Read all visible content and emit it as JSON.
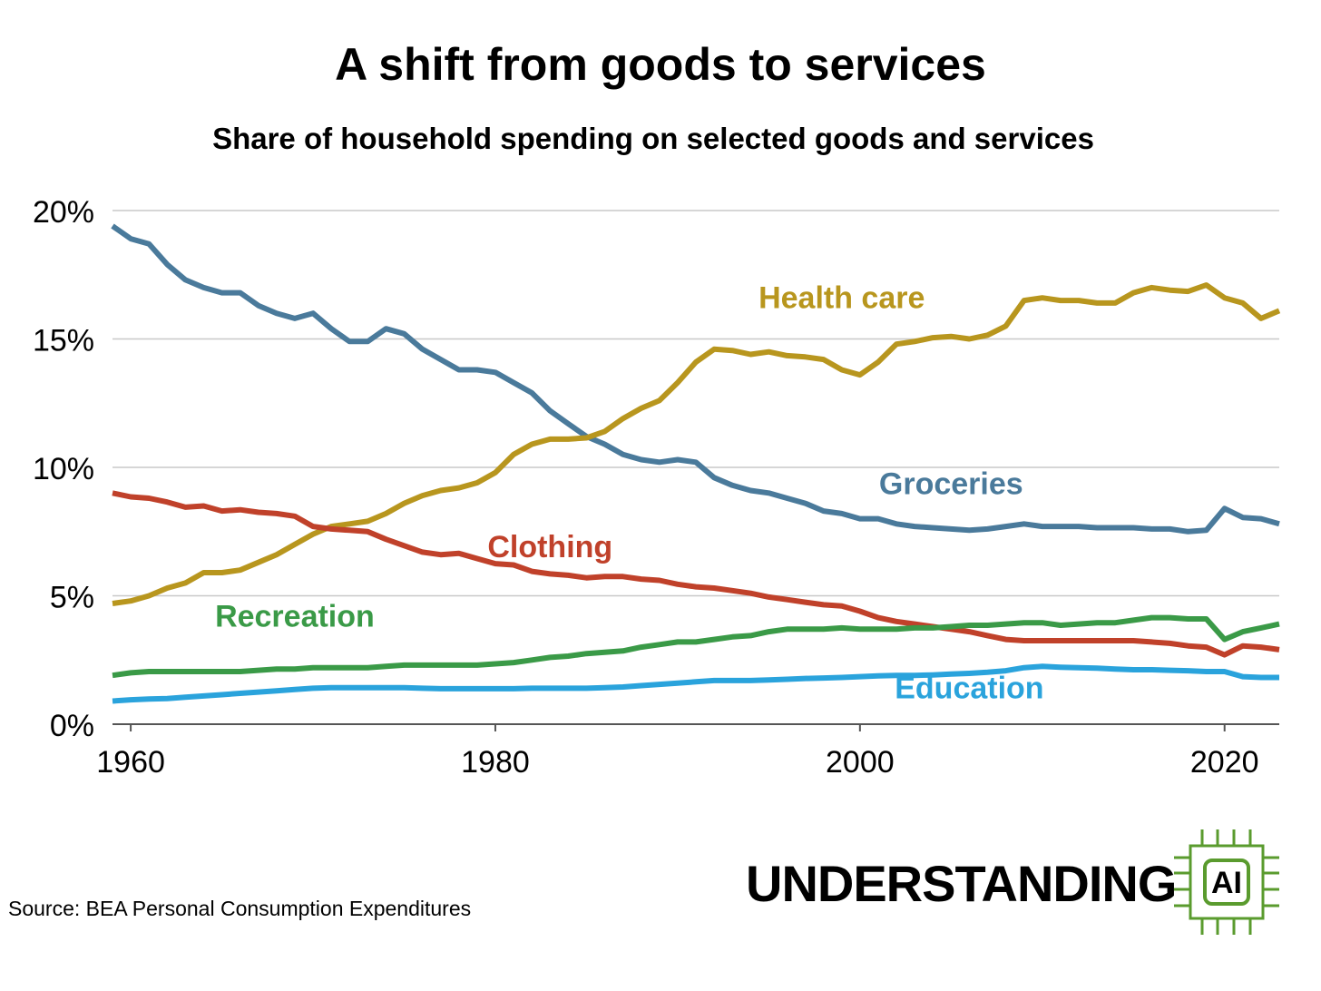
{
  "title": "A shift from goods to services",
  "subtitle": "Share of household spending on selected goods and services",
  "source": "Source: BEA Personal Consumption Expenditures",
  "logo": {
    "word": "UNDERSTANDING",
    "chip_text": "AI",
    "color": "#5a9b2e"
  },
  "chart_data": {
    "type": "line",
    "xlim": [
      1959,
      2023
    ],
    "ylim": [
      0,
      20
    ],
    "x_ticks": [
      1960,
      1980,
      2000,
      2020
    ],
    "x_tick_labels": [
      "1960",
      "1980",
      "2000",
      "2020"
    ],
    "y_ticks": [
      0,
      5,
      10,
      15,
      20
    ],
    "y_tick_labels": [
      "0%",
      "5%",
      "10%",
      "15%",
      "20%"
    ],
    "grid": "horizontal",
    "series": [
      {
        "name": "Groceries",
        "color": "#4a7a9b",
        "x": [
          1959,
          1960,
          1961,
          1962,
          1963,
          1964,
          1965,
          1966,
          1967,
          1968,
          1969,
          1970,
          1971,
          1972,
          1973,
          1974,
          1975,
          1976,
          1977,
          1978,
          1979,
          1980,
          1981,
          1982,
          1983,
          1984,
          1985,
          1986,
          1987,
          1988,
          1989,
          1990,
          1991,
          1992,
          1993,
          1994,
          1995,
          1996,
          1997,
          1998,
          1999,
          2000,
          2001,
          2002,
          2003,
          2004,
          2005,
          2006,
          2007,
          2008,
          2009,
          2010,
          2011,
          2012,
          2013,
          2014,
          2015,
          2016,
          2017,
          2018,
          2019,
          2020,
          2021,
          2022,
          2023
        ],
        "values": [
          19.4,
          18.9,
          18.7,
          17.9,
          17.3,
          17.0,
          16.8,
          16.8,
          16.3,
          16.0,
          15.8,
          16.0,
          15.4,
          14.9,
          14.9,
          15.4,
          15.2,
          14.6,
          14.2,
          13.8,
          13.8,
          13.7,
          13.3,
          12.9,
          12.2,
          11.7,
          11.2,
          10.9,
          10.5,
          10.3,
          10.2,
          10.3,
          10.2,
          9.6,
          9.3,
          9.1,
          9.0,
          8.8,
          8.6,
          8.3,
          8.2,
          8.0,
          8.0,
          7.8,
          7.7,
          7.65,
          7.6,
          7.55,
          7.6,
          7.7,
          7.8,
          7.7,
          7.7,
          7.7,
          7.65,
          7.65,
          7.65,
          7.6,
          7.6,
          7.5,
          7.55,
          8.4,
          8.05,
          8.0,
          7.8
        ],
        "label": {
          "x": 2005,
          "y": 8.95
        }
      },
      {
        "name": "Health care",
        "color": "#b8961e",
        "x": [
          1959,
          1960,
          1961,
          1962,
          1963,
          1964,
          1965,
          1966,
          1967,
          1968,
          1969,
          1970,
          1971,
          1972,
          1973,
          1974,
          1975,
          1976,
          1977,
          1978,
          1979,
          1980,
          1981,
          1982,
          1983,
          1984,
          1985,
          1986,
          1987,
          1988,
          1989,
          1990,
          1991,
          1992,
          1993,
          1994,
          1995,
          1996,
          1997,
          1998,
          1999,
          2000,
          2001,
          2002,
          2003,
          2004,
          2005,
          2006,
          2007,
          2008,
          2009,
          2010,
          2011,
          2012,
          2013,
          2014,
          2015,
          2016,
          2017,
          2018,
          2019,
          2020,
          2021,
          2022,
          2023
        ],
        "values": [
          4.7,
          4.8,
          5.0,
          5.3,
          5.5,
          5.9,
          5.9,
          6.0,
          6.3,
          6.6,
          7.0,
          7.4,
          7.7,
          7.8,
          7.9,
          8.2,
          8.6,
          8.9,
          9.1,
          9.2,
          9.4,
          9.8,
          10.5,
          10.9,
          11.1,
          11.1,
          11.15,
          11.4,
          11.9,
          12.3,
          12.6,
          13.3,
          14.1,
          14.6,
          14.55,
          14.4,
          14.5,
          14.35,
          14.3,
          14.2,
          13.8,
          13.6,
          14.1,
          14.8,
          14.9,
          15.05,
          15.1,
          15.0,
          15.15,
          15.5,
          16.5,
          16.6,
          16.5,
          16.5,
          16.4,
          16.4,
          16.8,
          17.0,
          16.9,
          16.85,
          17.1,
          16.6,
          16.4,
          15.8,
          16.1
        ],
        "label": {
          "x": 1999,
          "y": 16.2
        }
      },
      {
        "name": "Clothing",
        "color": "#c0412a",
        "x": [
          1959,
          1960,
          1961,
          1962,
          1963,
          1964,
          1965,
          1966,
          1967,
          1968,
          1969,
          1970,
          1971,
          1972,
          1973,
          1974,
          1975,
          1976,
          1977,
          1978,
          1979,
          1980,
          1981,
          1982,
          1983,
          1984,
          1985,
          1986,
          1987,
          1988,
          1989,
          1990,
          1991,
          1992,
          1993,
          1994,
          1995,
          1996,
          1997,
          1998,
          1999,
          2000,
          2001,
          2002,
          2003,
          2004,
          2005,
          2006,
          2007,
          2008,
          2009,
          2010,
          2011,
          2012,
          2013,
          2014,
          2015,
          2016,
          2017,
          2018,
          2019,
          2020,
          2021,
          2022,
          2023
        ],
        "values": [
          9.0,
          8.85,
          8.8,
          8.65,
          8.45,
          8.5,
          8.3,
          8.35,
          8.25,
          8.2,
          8.1,
          7.7,
          7.6,
          7.55,
          7.5,
          7.2,
          6.95,
          6.7,
          6.6,
          6.65,
          6.45,
          6.25,
          6.2,
          5.95,
          5.85,
          5.8,
          5.7,
          5.75,
          5.75,
          5.65,
          5.6,
          5.45,
          5.35,
          5.3,
          5.2,
          5.1,
          4.95,
          4.85,
          4.75,
          4.65,
          4.6,
          4.4,
          4.15,
          4.0,
          3.9,
          3.8,
          3.7,
          3.6,
          3.45,
          3.3,
          3.25,
          3.25,
          3.25,
          3.25,
          3.25,
          3.25,
          3.25,
          3.2,
          3.15,
          3.05,
          3.0,
          2.7,
          3.05,
          3.0,
          2.9
        ],
        "label": {
          "x": 1983,
          "y": 6.5
        }
      },
      {
        "name": "Recreation",
        "color": "#3a9a47",
        "x": [
          1959,
          1960,
          1961,
          1962,
          1963,
          1964,
          1965,
          1966,
          1967,
          1968,
          1969,
          1970,
          1971,
          1972,
          1973,
          1974,
          1975,
          1976,
          1977,
          1978,
          1979,
          1980,
          1981,
          1982,
          1983,
          1984,
          1985,
          1986,
          1987,
          1988,
          1989,
          1990,
          1991,
          1992,
          1993,
          1994,
          1995,
          1996,
          1997,
          1998,
          1999,
          2000,
          2001,
          2002,
          2003,
          2004,
          2005,
          2006,
          2007,
          2008,
          2009,
          2010,
          2011,
          2012,
          2013,
          2014,
          2015,
          2016,
          2017,
          2018,
          2019,
          2020,
          2021,
          2022,
          2023
        ],
        "values": [
          1.9,
          2.0,
          2.05,
          2.05,
          2.05,
          2.05,
          2.05,
          2.05,
          2.1,
          2.15,
          2.15,
          2.2,
          2.2,
          2.2,
          2.2,
          2.25,
          2.3,
          2.3,
          2.3,
          2.3,
          2.3,
          2.35,
          2.4,
          2.5,
          2.6,
          2.65,
          2.75,
          2.8,
          2.85,
          3.0,
          3.1,
          3.2,
          3.2,
          3.3,
          3.4,
          3.45,
          3.6,
          3.7,
          3.7,
          3.7,
          3.75,
          3.7,
          3.7,
          3.7,
          3.75,
          3.75,
          3.8,
          3.85,
          3.85,
          3.9,
          3.95,
          3.95,
          3.85,
          3.9,
          3.95,
          3.95,
          4.05,
          4.15,
          4.15,
          4.1,
          4.1,
          3.3,
          3.6,
          3.75,
          3.9
        ],
        "label": {
          "x": 1969,
          "y": 3.8
        }
      },
      {
        "name": "Education",
        "color": "#2aa3dc",
        "x": [
          1959,
          1960,
          1961,
          1962,
          1963,
          1964,
          1965,
          1966,
          1967,
          1968,
          1969,
          1970,
          1971,
          1972,
          1973,
          1974,
          1975,
          1976,
          1977,
          1978,
          1979,
          1980,
          1981,
          1982,
          1983,
          1984,
          1985,
          1986,
          1987,
          1988,
          1989,
          1990,
          1991,
          1992,
          1993,
          1994,
          1995,
          1996,
          1997,
          1998,
          1999,
          2000,
          2001,
          2002,
          2003,
          2004,
          2005,
          2006,
          2007,
          2008,
          2009,
          2010,
          2011,
          2012,
          2013,
          2014,
          2015,
          2016,
          2017,
          2018,
          2019,
          2020,
          2021,
          2022,
          2023
        ],
        "values": [
          0.9,
          0.95,
          0.98,
          1.0,
          1.05,
          1.1,
          1.15,
          1.2,
          1.25,
          1.3,
          1.35,
          1.4,
          1.42,
          1.42,
          1.42,
          1.42,
          1.42,
          1.4,
          1.38,
          1.38,
          1.38,
          1.38,
          1.38,
          1.4,
          1.4,
          1.4,
          1.4,
          1.42,
          1.45,
          1.5,
          1.55,
          1.6,
          1.65,
          1.7,
          1.7,
          1.7,
          1.72,
          1.75,
          1.78,
          1.8,
          1.82,
          1.85,
          1.88,
          1.9,
          1.9,
          1.92,
          1.95,
          1.98,
          2.02,
          2.08,
          2.2,
          2.25,
          2.22,
          2.2,
          2.18,
          2.15,
          2.12,
          2.12,
          2.1,
          2.08,
          2.05,
          2.05,
          1.85,
          1.82,
          1.82
        ],
        "label": {
          "x": 2006,
          "y": 1.0
        }
      }
    ]
  }
}
